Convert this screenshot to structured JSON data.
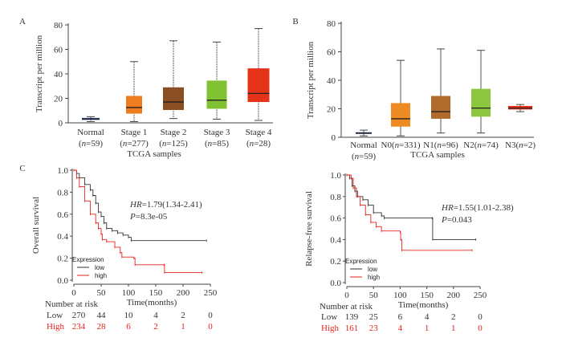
{
  "chart_data": [
    {
      "panel": "A",
      "type": "box",
      "ylabel": "Transcript per million",
      "xlabel": "TCGA samples",
      "ylim": [
        0,
        80
      ],
      "yticks": [
        0,
        20,
        40,
        60,
        80
      ],
      "categories": [
        [
          "Normal",
          "(n=59)"
        ],
        [
          "Stage 1",
          "(n=277)"
        ],
        [
          "Stage 2",
          "(n=125)"
        ],
        [
          "Stage 3",
          "(n=85)"
        ],
        [
          "Stage 4",
          "(n=28)"
        ]
      ],
      "colors": [
        "#2b3a8f",
        "#ee7d22",
        "#8b4f24",
        "#80c232",
        "#e5331a"
      ],
      "boxes": [
        [
          1,
          2.5,
          3,
          4,
          5
        ],
        [
          1,
          7.5,
          12.5,
          22,
          50
        ],
        [
          3.5,
          10.5,
          17,
          29,
          67
        ],
        [
          3,
          11.5,
          18.5,
          34.5,
          66
        ],
        [
          2,
          17,
          24,
          44.5,
          77
        ]
      ]
    },
    {
      "panel": "B",
      "type": "box",
      "ylabel": "Transcript per million",
      "xlabel": "TCGA samples",
      "ylim": [
        0,
        80
      ],
      "yticks": [
        0,
        20,
        40,
        60,
        80
      ],
      "categories": [
        [
          "Normal",
          "(n=59)"
        ],
        [
          "N0(n=331)",
          ""
        ],
        [
          "N1(n=96)",
          ""
        ],
        [
          "N2(n=74)",
          ""
        ],
        [
          "N3(n=2)",
          ""
        ]
      ],
      "colors": [
        "#2b3a8f",
        "#ee8a22",
        "#b06a2c",
        "#8cc63e",
        "#e5331a"
      ],
      "boxes": [
        [
          1,
          2.5,
          3,
          3.5,
          5
        ],
        [
          1,
          7.5,
          13,
          24,
          54
        ],
        [
          3,
          13,
          18,
          29,
          62
        ],
        [
          3,
          14.5,
          20.5,
          34,
          61
        ],
        [
          18,
          19.5,
          20.5,
          22,
          23
        ]
      ]
    },
    {
      "panel": "C",
      "type": "line",
      "ylabel": "Overall survival",
      "xlabel": "Time(months)",
      "xlim": [
        0,
        250
      ],
      "ylim": [
        0,
        1
      ],
      "xticks": [
        0,
        50,
        100,
        150,
        200,
        250
      ],
      "yticks": [
        "0.0",
        "0.2",
        "0.4",
        "0.6",
        "0.8",
        "1.0"
      ],
      "annotation": {
        "hr": "=1.79(1.34-2.41)",
        "p": "=8.3e-05"
      },
      "legend": {
        "title": "Expression",
        "placement": "bottom-left"
      },
      "series": [
        {
          "name": "low",
          "color": "#333333",
          "values": [
            [
              0,
              1
            ],
            [
              5,
              0.97
            ],
            [
              10,
              0.93
            ],
            [
              20,
              0.87
            ],
            [
              30,
              0.82
            ],
            [
              35,
              0.77
            ],
            [
              40,
              0.7
            ],
            [
              45,
              0.62
            ],
            [
              50,
              0.58
            ],
            [
              55,
              0.52
            ],
            [
              60,
              0.47
            ],
            [
              70,
              0.45
            ],
            [
              80,
              0.43
            ],
            [
              90,
              0.41
            ],
            [
              100,
              0.39
            ],
            [
              105,
              0.36
            ],
            [
              243,
              0.36
            ]
          ]
        },
        {
          "name": "high",
          "color": "#e8231d",
          "values": [
            [
              0,
              1
            ],
            [
              5,
              0.93
            ],
            [
              10,
              0.85
            ],
            [
              20,
              0.72
            ],
            [
              30,
              0.6
            ],
            [
              40,
              0.52
            ],
            [
              45,
              0.47
            ],
            [
              50,
              0.42
            ],
            [
              52,
              0.37
            ],
            [
              60,
              0.35
            ],
            [
              75,
              0.3
            ],
            [
              85,
              0.25
            ],
            [
              88,
              0.21
            ],
            [
              110,
              0.2
            ],
            [
              112,
              0.14
            ],
            [
              165,
              0.14
            ],
            [
              166,
              0.07
            ],
            [
              235,
              0.07
            ]
          ]
        }
      ],
      "risk": {
        "title": "Number at risk",
        "rows": [
          {
            "label": "Low",
            "values": [
              "270",
              "44",
              "10",
              "4",
              "2",
              "0"
            ]
          },
          {
            "label": "High",
            "values": [
              "234",
              "28",
              "6",
              "2",
              "1",
              "0"
            ]
          }
        ]
      }
    },
    {
      "panel": "",
      "type": "line",
      "ylabel": "Relapse-free survival",
      "xlabel": "Time(months)",
      "xlim": [
        0,
        250
      ],
      "ylim": [
        0,
        1
      ],
      "xticks": [
        0,
        50,
        100,
        150,
        200,
        250
      ],
      "yticks": [
        "0.0",
        "0.2",
        "0.4",
        "0.6",
        "0.8",
        "1.0"
      ],
      "annotation": {
        "hr": "=1.55(1.01-2.38)",
        "p": "=0.043"
      },
      "legend": {
        "title": "Expression",
        "placement": "bottom-left"
      },
      "series": [
        {
          "name": "low",
          "color": "#333333",
          "values": [
            [
              0,
              1
            ],
            [
              5,
              0.97
            ],
            [
              10,
              0.9
            ],
            [
              15,
              0.85
            ],
            [
              20,
              0.8
            ],
            [
              30,
              0.77
            ],
            [
              40,
              0.72
            ],
            [
              50,
              0.65
            ],
            [
              65,
              0.62
            ],
            [
              70,
              0.6
            ],
            [
              160,
              0.6
            ],
            [
              161,
              0.4
            ],
            [
              242,
              0.4
            ]
          ]
        },
        {
          "name": "high",
          "color": "#e8231d",
          "values": [
            [
              0,
              1
            ],
            [
              8,
              0.97
            ],
            [
              12,
              0.88
            ],
            [
              18,
              0.8
            ],
            [
              25,
              0.72
            ],
            [
              35,
              0.63
            ],
            [
              45,
              0.56
            ],
            [
              55,
              0.52
            ],
            [
              65,
              0.48
            ],
            [
              100,
              0.47
            ],
            [
              101,
              0.4
            ],
            [
              103,
              0.3
            ],
            [
              235,
              0.3
            ]
          ]
        }
      ],
      "risk": {
        "title": "Number at risk",
        "rows": [
          {
            "label": "Low",
            "values": [
              "139",
              "25",
              "6",
              "4",
              "2",
              "0"
            ]
          },
          {
            "label": "High",
            "values": [
              "161",
              "23",
              "4",
              "1",
              "1",
              "0"
            ]
          }
        ]
      }
    }
  ]
}
